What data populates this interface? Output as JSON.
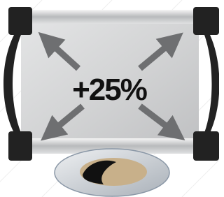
{
  "badge": {
    "text": "+25%"
  }
}
